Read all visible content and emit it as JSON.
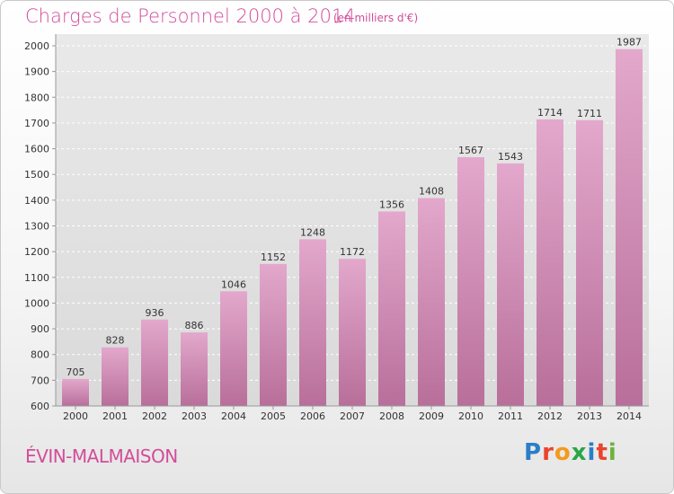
{
  "title": "Charges de Personnel 2000 à 2014",
  "subtitle": "(en milliers d'€)",
  "city": "ÉVIN-MALMAISON",
  "logo": {
    "letters": [
      "P",
      "r",
      "o",
      "x",
      "i",
      "t",
      "i"
    ],
    "colors": [
      "#2a7fc6",
      "#e9452d",
      "#f39a1d",
      "#2aa646",
      "#2a7fc6",
      "#e9452d",
      "#6db33f"
    ]
  },
  "chart_data": {
    "type": "bar",
    "categories": [
      "2000",
      "2001",
      "2002",
      "2003",
      "2004",
      "2005",
      "2006",
      "2007",
      "2008",
      "2009",
      "2010",
      "2011",
      "2012",
      "2013",
      "2014"
    ],
    "values": [
      705,
      828,
      936,
      886,
      1046,
      1152,
      1248,
      1172,
      1356,
      1408,
      1567,
      1543,
      1714,
      1711,
      1987
    ],
    "ylim": [
      600,
      2000
    ],
    "yticks": [
      600,
      700,
      800,
      900,
      1000,
      1100,
      1200,
      1300,
      1400,
      1500,
      1600,
      1700,
      1800,
      1900,
      2000
    ],
    "grid": true,
    "bar_color": "#cc7fae"
  }
}
